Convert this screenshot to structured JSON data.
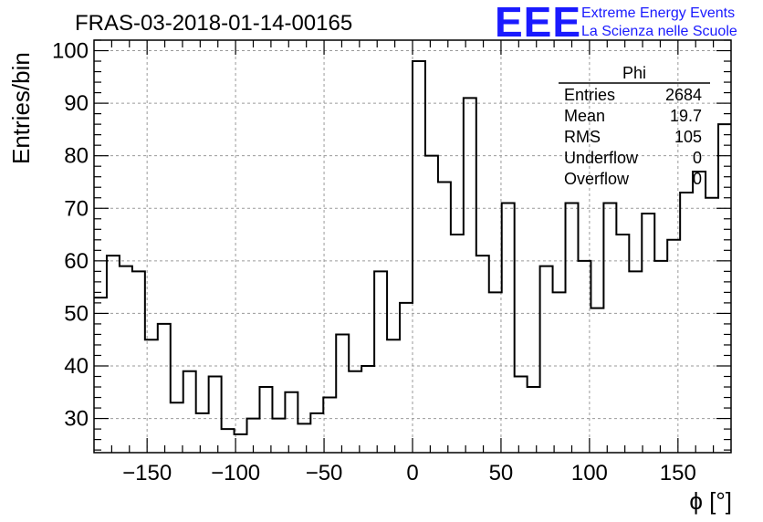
{
  "title": "FRAS-03-2018-01-14-00165",
  "logo": {
    "mark": "EEE",
    "line1": "Extreme Energy Events",
    "line2": "La Scienza nelle Scuole",
    "color": "#1a1aff"
  },
  "stats": {
    "name": "Phi",
    "rows": [
      {
        "label": "Entries",
        "value": "2684"
      },
      {
        "label": "Mean",
        "value": "19.7"
      },
      {
        "label": "RMS",
        "value": "105"
      },
      {
        "label": "Underflow",
        "value": "0"
      },
      {
        "label": "Overflow",
        "value": "0"
      }
    ]
  },
  "chart_data": {
    "type": "bar",
    "style": "step-histogram",
    "title": "FRAS-03-2018-01-14-00165",
    "xlabel": "ϕ [°]",
    "ylabel": "Entries/bin",
    "xlim": [
      -180,
      180
    ],
    "ylim": [
      23.5,
      102
    ],
    "bin_width": 7.2,
    "x_ticks": [
      -150,
      -100,
      -50,
      0,
      50,
      100,
      150
    ],
    "x_tick_labels": [
      "−150",
      "−100",
      "−50",
      "0",
      "50",
      "100",
      "150"
    ],
    "y_ticks": [
      30,
      40,
      50,
      60,
      70,
      80,
      90,
      100
    ],
    "grid": true,
    "values": [
      53,
      61,
      59,
      58,
      45,
      48,
      33,
      39,
      31,
      38,
      28,
      27,
      30,
      36,
      30,
      35,
      29,
      31,
      34,
      46,
      39,
      40,
      58,
      45,
      52,
      98,
      80,
      75,
      65,
      91,
      61,
      54,
      71,
      38,
      36,
      59,
      54,
      71,
      60,
      51,
      71,
      65,
      58,
      69,
      60,
      64,
      73,
      77,
      72,
      86
    ]
  }
}
